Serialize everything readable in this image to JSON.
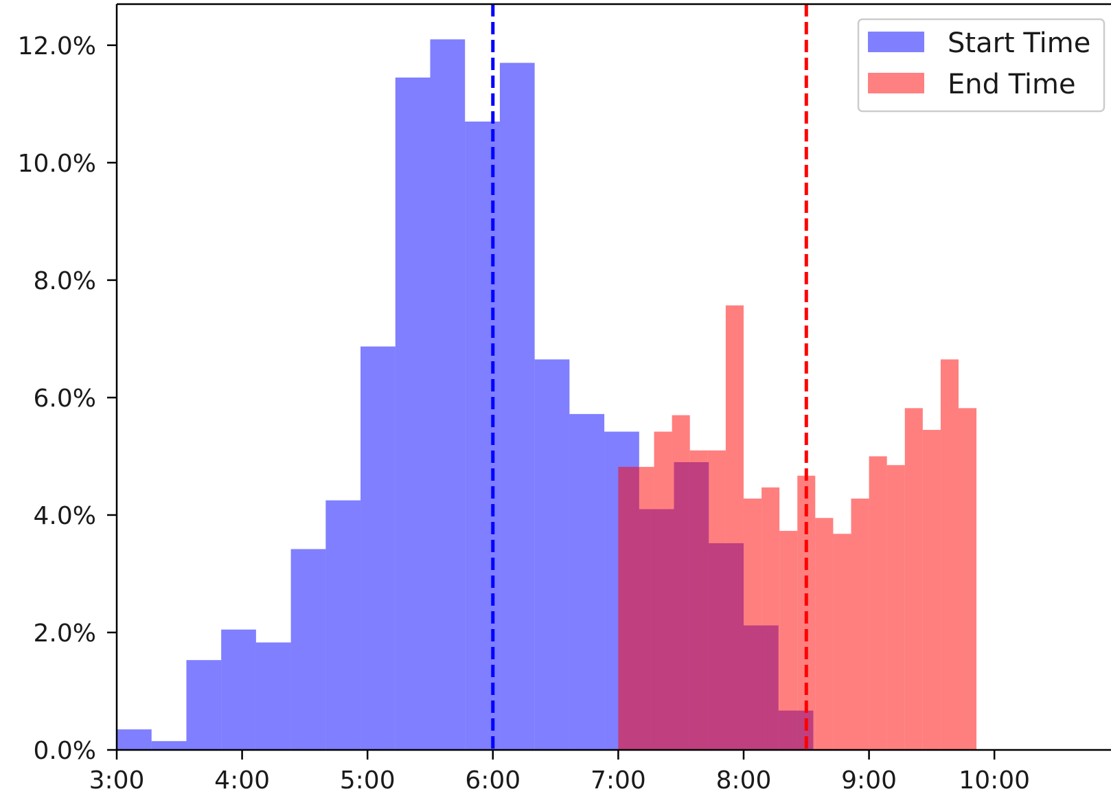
{
  "chart_data": {
    "type": "bar",
    "title": "",
    "xlabel": "",
    "ylabel": "",
    "x_axis": {
      "range_hours": [
        3.0,
        10.93
      ],
      "ticks": [
        {
          "value": 3,
          "label": "3:00"
        },
        {
          "value": 4,
          "label": "4:00"
        },
        {
          "value": 5,
          "label": "5:00"
        },
        {
          "value": 6,
          "label": "6:00"
        },
        {
          "value": 7,
          "label": "7:00"
        },
        {
          "value": 8,
          "label": "8:00"
        },
        {
          "value": 9,
          "label": "9:00"
        },
        {
          "value": 10,
          "label": "10:00"
        }
      ]
    },
    "y_axis": {
      "range": [
        0,
        12.0
      ],
      "ylim_top": 12.7,
      "ticks": [
        {
          "value": 0,
          "label": "0.0%"
        },
        {
          "value": 2,
          "label": "2.0%"
        },
        {
          "value": 4,
          "label": "4.0%"
        },
        {
          "value": 6,
          "label": "6.0%"
        },
        {
          "value": 8,
          "label": "8.0%"
        },
        {
          "value": 10,
          "label": "10.0%"
        },
        {
          "value": 12,
          "label": "12.0%"
        }
      ]
    },
    "grid": false,
    "legend": {
      "position": "top-right",
      "entries": [
        {
          "label": "Start Time",
          "color": "#8080ff"
        },
        {
          "label": "End Time",
          "color": "#ff8080"
        }
      ]
    },
    "series": [
      {
        "name": "Start Time",
        "color": "#0000ff",
        "alpha": 0.5,
        "bin_edges_hours": [
          3.0,
          3.2778,
          3.5556,
          3.8333,
          4.1111,
          4.3889,
          4.6667,
          4.9444,
          5.2222,
          5.5,
          5.7778,
          6.0556,
          6.3333,
          6.6111,
          6.8889,
          7.1667,
          7.4444,
          7.7222,
          8.0,
          8.2778,
          8.5556
        ],
        "values": [
          0.35,
          0.15,
          1.53,
          2.05,
          1.83,
          3.42,
          4.25,
          6.87,
          11.45,
          12.1,
          10.7,
          11.7,
          6.65,
          5.72,
          5.42,
          4.1,
          4.9,
          3.52,
          2.12,
          0.67
        ]
      },
      {
        "name": "End Time",
        "color": "#ff0000",
        "alpha": 0.5,
        "bin_edges_hours": [
          7.0,
          7.1429,
          7.2857,
          7.4286,
          7.5714,
          7.7143,
          7.8571,
          8.0,
          8.1429,
          8.2857,
          8.4286,
          8.5714,
          8.7143,
          8.8571,
          9.0,
          9.1429,
          9.2857,
          9.4286,
          9.5714,
          9.7143,
          9.8571,
          10.0
        ],
        "values": [
          4.82,
          4.82,
          5.42,
          5.7,
          5.1,
          5.1,
          7.57,
          4.28,
          4.47,
          3.73,
          4.67,
          3.95,
          3.68,
          4.28,
          5.0,
          4.85,
          5.82,
          5.45,
          6.65,
          5.82,
          0
        ]
      }
    ],
    "reference_lines": [
      {
        "label": "",
        "x_hours": 6.0,
        "color": "#0000ff",
        "style": "dashed"
      },
      {
        "label": "",
        "x_hours": 8.5,
        "color": "#ff0000",
        "style": "dashed"
      }
    ]
  }
}
